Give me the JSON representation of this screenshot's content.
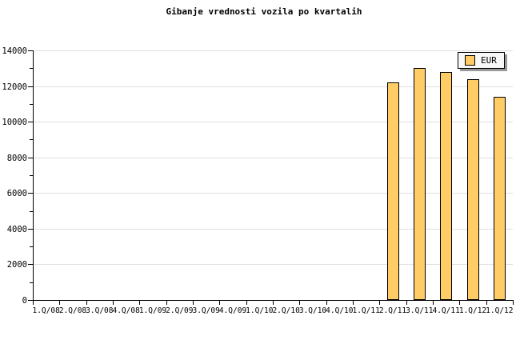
{
  "title": "Gibanje vrednosti vozila po kvartalih",
  "legend": {
    "label": "EUR"
  },
  "colors": {
    "bar_fill": "#FFCC66",
    "bar_border": "#000000",
    "grid": "#E0E0E0",
    "axis": "#000000",
    "legend_bg": "#F8F8F8",
    "legend_shadow": "#999999",
    "text": "#000000"
  },
  "chart_data": {
    "type": "bar",
    "title": "Gibanje vrednosti vozila po kvartalih",
    "categories": [
      "1.Q/08",
      "2.Q/08",
      "3.Q/08",
      "4.Q/08",
      "1.Q/09",
      "2.Q/09",
      "3.Q/09",
      "4.Q/09",
      "1.Q/10",
      "2.Q/10",
      "3.Q/10",
      "4.Q/10",
      "1.Q/11",
      "2.Q/11",
      "3.Q/11",
      "4.Q/11",
      "1.Q/12",
      "1.Q/12"
    ],
    "series": [
      {
        "name": "EUR",
        "color": "#FFCC66",
        "values": [
          null,
          null,
          null,
          null,
          null,
          null,
          null,
          null,
          null,
          null,
          null,
          null,
          null,
          12200,
          13000,
          12800,
          12400,
          11400
        ]
      }
    ],
    "xlabel": "",
    "ylabel": "",
    "ylim": [
      0,
      14000
    ],
    "ytick_step": 2000,
    "yminortick_step": 1000,
    "ytick_labels": [
      "0",
      "2000",
      "4000",
      "6000",
      "8000",
      "10000",
      "12000",
      "14000"
    ],
    "grid": "horizontal-major",
    "legend_position": "top-right"
  }
}
